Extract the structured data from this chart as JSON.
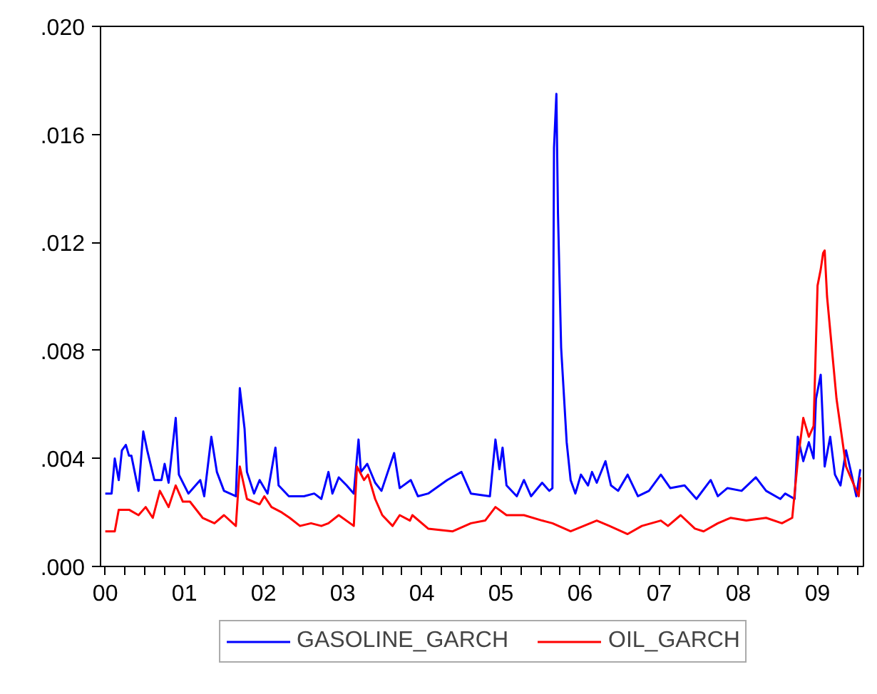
{
  "chart_data": {
    "type": "line",
    "xlim": [
      1999.94,
      2009.58
    ],
    "ylim": [
      0,
      0.02
    ],
    "yticks": [
      {
        "value": 0,
        "label": ".000"
      },
      {
        "value": 0.004,
        "label": ".004"
      },
      {
        "value": 0.008,
        "label": ".008"
      },
      {
        "value": 0.012,
        "label": ".012"
      },
      {
        "value": 0.016,
        "label": ".016"
      },
      {
        "value": 0.02,
        "label": ".020"
      }
    ],
    "xticks": [
      {
        "value": 2000.0,
        "label": "00"
      },
      {
        "value": 2000.25,
        "label": null
      },
      {
        "value": 2000.5,
        "label": null
      },
      {
        "value": 2000.75,
        "label": null
      },
      {
        "value": 2001.0,
        "label": "01"
      },
      {
        "value": 2001.25,
        "label": null
      },
      {
        "value": 2001.5,
        "label": null
      },
      {
        "value": 2001.75,
        "label": null
      },
      {
        "value": 2002.0,
        "label": "02"
      },
      {
        "value": 2002.25,
        "label": null
      },
      {
        "value": 2002.5,
        "label": null
      },
      {
        "value": 2002.75,
        "label": null
      },
      {
        "value": 2003.0,
        "label": "03"
      },
      {
        "value": 2003.25,
        "label": null
      },
      {
        "value": 2003.5,
        "label": null
      },
      {
        "value": 2003.75,
        "label": null
      },
      {
        "value": 2004.0,
        "label": "04"
      },
      {
        "value": 2004.25,
        "label": null
      },
      {
        "value": 2004.5,
        "label": null
      },
      {
        "value": 2004.75,
        "label": null
      },
      {
        "value": 2005.0,
        "label": "05"
      },
      {
        "value": 2005.25,
        "label": null
      },
      {
        "value": 2005.5,
        "label": null
      },
      {
        "value": 2005.75,
        "label": null
      },
      {
        "value": 2006.0,
        "label": "06"
      },
      {
        "value": 2006.25,
        "label": null
      },
      {
        "value": 2006.5,
        "label": null
      },
      {
        "value": 2006.75,
        "label": null
      },
      {
        "value": 2007.0,
        "label": "07"
      },
      {
        "value": 2007.25,
        "label": null
      },
      {
        "value": 2007.5,
        "label": null
      },
      {
        "value": 2007.75,
        "label": null
      },
      {
        "value": 2008.0,
        "label": "08"
      },
      {
        "value": 2008.25,
        "label": null
      },
      {
        "value": 2008.5,
        "label": null
      },
      {
        "value": 2008.75,
        "label": null
      },
      {
        "value": 2009.0,
        "label": "09"
      },
      {
        "value": 2009.25,
        "label": null
      },
      {
        "value": 2009.5,
        "label": null
      }
    ],
    "grid": false,
    "legend": "bottom",
    "line_style": "solid",
    "series": [
      {
        "name": "GASOLINE_GARCH",
        "color": "#0000ff",
        "x": [
          2000.0,
          2000.08,
          2000.12,
          2000.17,
          2000.21,
          2000.26,
          2000.3,
          2000.33,
          2000.42,
          2000.48,
          2000.53,
          2000.62,
          2000.71,
          2000.75,
          2000.8,
          2000.89,
          2000.93,
          2001.05,
          2001.2,
          2001.25,
          2001.34,
          2001.41,
          2001.5,
          2001.65,
          2001.7,
          2001.76,
          2001.79,
          2001.88,
          2001.95,
          2002.05,
          2002.15,
          2002.19,
          2002.32,
          2002.51,
          2002.64,
          2002.73,
          2002.82,
          2002.87,
          2002.95,
          2003.05,
          2003.14,
          2003.2,
          2003.23,
          2003.31,
          2003.41,
          2003.49,
          2003.65,
          2003.72,
          2003.86,
          2003.95,
          2004.08,
          2004.32,
          2004.5,
          2004.62,
          2004.86,
          2004.93,
          2004.98,
          2005.02,
          2005.07,
          2005.2,
          2005.29,
          2005.38,
          2005.52,
          2005.61,
          2005.65,
          2005.67,
          2005.7,
          2005.72,
          2005.76,
          2005.83,
          2005.88,
          2005.94,
          2006.01,
          2006.1,
          2006.15,
          2006.21,
          2006.32,
          2006.39,
          2006.48,
          2006.6,
          2006.73,
          2006.87,
          2007.02,
          2007.14,
          2007.32,
          2007.47,
          2007.65,
          2007.74,
          2007.86,
          2008.04,
          2008.22,
          2008.35,
          2008.53,
          2008.59,
          2008.71,
          2008.75,
          2008.82,
          2008.89,
          2008.95,
          2008.98,
          2009.04,
          2009.07,
          2009.09,
          2009.16,
          2009.22,
          2009.29,
          2009.36,
          2009.43,
          2009.49,
          2009.54
        ],
        "values": [
          0.0027,
          0.0027,
          0.004,
          0.0032,
          0.0043,
          0.0045,
          0.0041,
          0.0041,
          0.0028,
          0.005,
          0.0043,
          0.0032,
          0.0032,
          0.0038,
          0.0031,
          0.0055,
          0.0034,
          0.0027,
          0.0032,
          0.0026,
          0.0048,
          0.0035,
          0.0028,
          0.0026,
          0.0066,
          0.0051,
          0.0035,
          0.0027,
          0.0032,
          0.0027,
          0.0044,
          0.003,
          0.0026,
          0.0026,
          0.0027,
          0.0025,
          0.0035,
          0.0027,
          0.0033,
          0.003,
          0.0027,
          0.0047,
          0.0035,
          0.0038,
          0.0031,
          0.0028,
          0.0042,
          0.0029,
          0.0032,
          0.0026,
          0.0027,
          0.0032,
          0.0035,
          0.0027,
          0.0026,
          0.0047,
          0.0036,
          0.0044,
          0.003,
          0.0026,
          0.0032,
          0.0026,
          0.0031,
          0.0028,
          0.0029,
          0.0155,
          0.0175,
          0.0131,
          0.0081,
          0.0046,
          0.0032,
          0.0027,
          0.0034,
          0.003,
          0.0035,
          0.0031,
          0.0039,
          0.003,
          0.0028,
          0.0034,
          0.0026,
          0.0028,
          0.0034,
          0.0029,
          0.003,
          0.0025,
          0.0032,
          0.0026,
          0.0029,
          0.0028,
          0.0033,
          0.0028,
          0.0025,
          0.0027,
          0.0025,
          0.0048,
          0.0039,
          0.0046,
          0.004,
          0.0062,
          0.0071,
          0.0051,
          0.0037,
          0.0048,
          0.0034,
          0.003,
          0.0043,
          0.0034,
          0.0026,
          0.0036
        ]
      },
      {
        "name": "OIL_GARCH",
        "color": "#ff0000",
        "x": [
          2000.0,
          2000.12,
          2000.17,
          2000.3,
          2000.42,
          2000.51,
          2000.6,
          2000.69,
          2000.8,
          2000.89,
          2000.98,
          2001.07,
          2001.23,
          2001.38,
          2001.5,
          2001.65,
          2001.7,
          2001.79,
          2001.95,
          2002.01,
          2002.1,
          2002.23,
          2002.33,
          2002.46,
          2002.6,
          2002.73,
          2002.82,
          2002.95,
          2003.14,
          2003.18,
          2003.27,
          2003.32,
          2003.41,
          2003.5,
          2003.63,
          2003.72,
          2003.85,
          2003.88,
          2004.08,
          2004.39,
          2004.62,
          2004.8,
          2004.93,
          2005.07,
          2005.29,
          2005.52,
          2005.65,
          2005.88,
          2006.21,
          2006.37,
          2006.6,
          2006.78,
          2007.02,
          2007.11,
          2007.27,
          2007.45,
          2007.56,
          2007.74,
          2007.9,
          2008.1,
          2008.35,
          2008.55,
          2008.68,
          2008.75,
          2008.82,
          2008.89,
          2008.95,
          2009.0,
          2009.04,
          2009.07,
          2009.09,
          2009.12,
          2009.24,
          2009.36,
          2009.52,
          2009.54
        ],
        "values": [
          0.0013,
          0.0013,
          0.0021,
          0.0021,
          0.0019,
          0.0022,
          0.0018,
          0.0028,
          0.0022,
          0.003,
          0.0024,
          0.0024,
          0.0018,
          0.0016,
          0.0019,
          0.0015,
          0.0037,
          0.0025,
          0.0023,
          0.0026,
          0.0022,
          0.002,
          0.0018,
          0.0015,
          0.0016,
          0.0015,
          0.0016,
          0.0019,
          0.0015,
          0.0037,
          0.0032,
          0.0034,
          0.0025,
          0.0019,
          0.0015,
          0.0019,
          0.0017,
          0.0019,
          0.0014,
          0.0013,
          0.0016,
          0.0017,
          0.0022,
          0.0019,
          0.0019,
          0.0017,
          0.0016,
          0.0013,
          0.0017,
          0.0015,
          0.0012,
          0.0015,
          0.0017,
          0.0015,
          0.0019,
          0.0014,
          0.0013,
          0.0016,
          0.0018,
          0.0017,
          0.0018,
          0.0016,
          0.0018,
          0.0039,
          0.0055,
          0.0048,
          0.0052,
          0.0104,
          0.011,
          0.0116,
          0.0117,
          0.01,
          0.0062,
          0.0037,
          0.0026,
          0.0033
        ]
      }
    ]
  }
}
